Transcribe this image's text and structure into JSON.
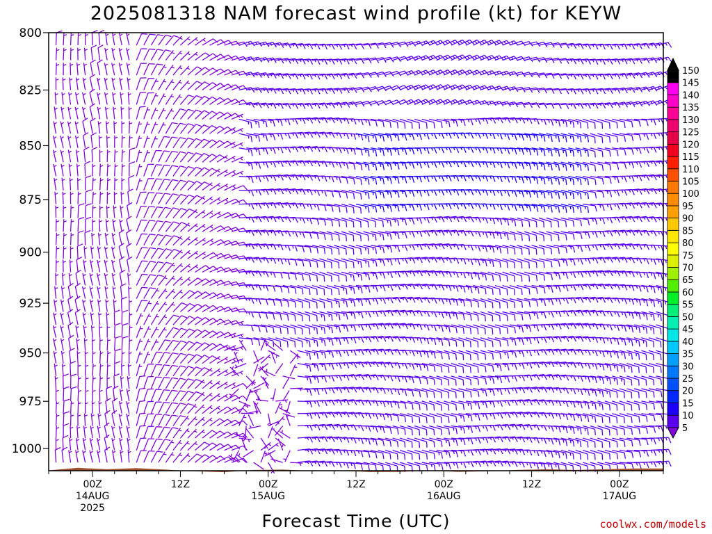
{
  "chart_data": {
    "type": "wind-barb-time-height",
    "title": "2025081318 NAM forecast wind profile (kt) for KEYW",
    "xlabel": "Forecast Time (UTC)",
    "ylabel": "",
    "y_scale": "log",
    "y_inverted": true,
    "ylim": [
      800,
      1012
    ],
    "y_ticks": [
      {
        "value": 800,
        "label": "800"
      },
      {
        "value": 825,
        "label": "825"
      },
      {
        "value": 850,
        "label": "850"
      },
      {
        "value": 875,
        "label": "875"
      },
      {
        "value": 900,
        "label": "900"
      },
      {
        "value": 925,
        "label": "925"
      },
      {
        "value": 950,
        "label": "950"
      },
      {
        "value": 975,
        "label": "975"
      },
      {
        "value": 1000,
        "label": "1000"
      }
    ],
    "x_ticks": [
      {
        "hour": 6,
        "lines": [
          "00Z",
          "14AUG",
          "2025"
        ]
      },
      {
        "hour": 18,
        "lines": [
          "12Z"
        ]
      },
      {
        "hour": 30,
        "lines": [
          "00Z",
          "15AUG"
        ]
      },
      {
        "hour": 42,
        "lines": [
          "12Z"
        ]
      },
      {
        "hour": 54,
        "lines": [
          "00Z",
          "16AUG"
        ]
      },
      {
        "hour": 66,
        "lines": [
          "12Z"
        ]
      },
      {
        "hour": 78,
        "lines": [
          "00Z",
          "17AUG"
        ]
      }
    ],
    "xlim_hours": [
      0,
      84
    ],
    "grid": false,
    "colorbar": {
      "unit": "kt",
      "levels": [
        5,
        10,
        15,
        20,
        25,
        30,
        35,
        40,
        45,
        50,
        55,
        60,
        65,
        70,
        75,
        80,
        85,
        90,
        95,
        100,
        105,
        110,
        115,
        120,
        125,
        130,
        135,
        140,
        145,
        150
      ],
      "colors": [
        "#8200dc",
        "#5a00f0",
        "#1e00ff",
        "#0028ff",
        "#0050ff",
        "#0078ff",
        "#00a0ff",
        "#00c8ff",
        "#00e6e6",
        "#00f0b4",
        "#00f078",
        "#00f028",
        "#50f000",
        "#a0f000",
        "#dcf000",
        "#ffff00",
        "#ffe600",
        "#ffc800",
        "#ffa000",
        "#ff8c00",
        "#ff7800",
        "#ff5000",
        "#ff1e00",
        "#f0001e",
        "#e60046",
        "#f0006e",
        "#ff0096",
        "#ff00c8",
        "#ff00f0",
        "#000000"
      ]
    },
    "barb_color_5_10kt": "#8200dc",
    "barb_color_10_15kt": "#5a00f0",
    "barb_color_15_20kt": "#1e00ff",
    "surface_color": "#a0522d",
    "surface_pressure": [
      {
        "hour": 0,
        "value": 1011.8
      },
      {
        "hour": 4,
        "value": 1010.4
      },
      {
        "hour": 8,
        "value": 1011.2
      },
      {
        "hour": 12,
        "value": 1010.6
      },
      {
        "hour": 16,
        "value": 1011.4
      },
      {
        "hour": 20,
        "value": 1012.3
      },
      {
        "hour": 24,
        "value": 1012.8
      },
      {
        "hour": 28,
        "value": 1011.6
      },
      {
        "hour": 32,
        "value": 1011.4
      },
      {
        "hour": 36,
        "value": 1012.1
      },
      {
        "hour": 40,
        "value": 1012.0
      },
      {
        "hour": 44,
        "value": 1012.7
      },
      {
        "hour": 48,
        "value": 1012.6
      },
      {
        "hour": 52,
        "value": 1011.9
      },
      {
        "hour": 56,
        "value": 1012.6
      },
      {
        "hour": 60,
        "value": 1012.3
      },
      {
        "hour": 64,
        "value": 1011.6
      },
      {
        "hour": 68,
        "value": 1011.2
      },
      {
        "hour": 72,
        "value": 1011.6
      },
      {
        "hour": 76,
        "value": 1011.2
      },
      {
        "hour": 80,
        "value": 1010.8
      },
      {
        "hour": 84,
        "value": 1010.8
      }
    ],
    "wind_regimes": [
      {
        "hours": [
          0,
          12
        ],
        "levels": "all",
        "direction": "northerly",
        "speed_kt": "5-10"
      },
      {
        "hours": [
          12,
          26
        ],
        "levels": "all",
        "direction": "northeasterly to easterly",
        "speed_kt": "5-10"
      },
      {
        "hours": [
          26,
          34
        ],
        "levels": "950-1012",
        "direction": "calm / variable",
        "speed_kt": "0-5"
      },
      {
        "hours": [
          34,
          84
        ],
        "levels": "850-1012",
        "direction": "easterly",
        "speed_kt": "10-15"
      },
      {
        "hours": [
          42,
          72
        ],
        "levels": "840-880",
        "direction": "easterly",
        "speed_kt": "15-20"
      },
      {
        "hours": [
          40,
          84
        ],
        "levels": "800-830",
        "direction": "east-northeasterly",
        "speed_kt": "10-15"
      }
    ]
  },
  "credit": "coolwx.com/models"
}
